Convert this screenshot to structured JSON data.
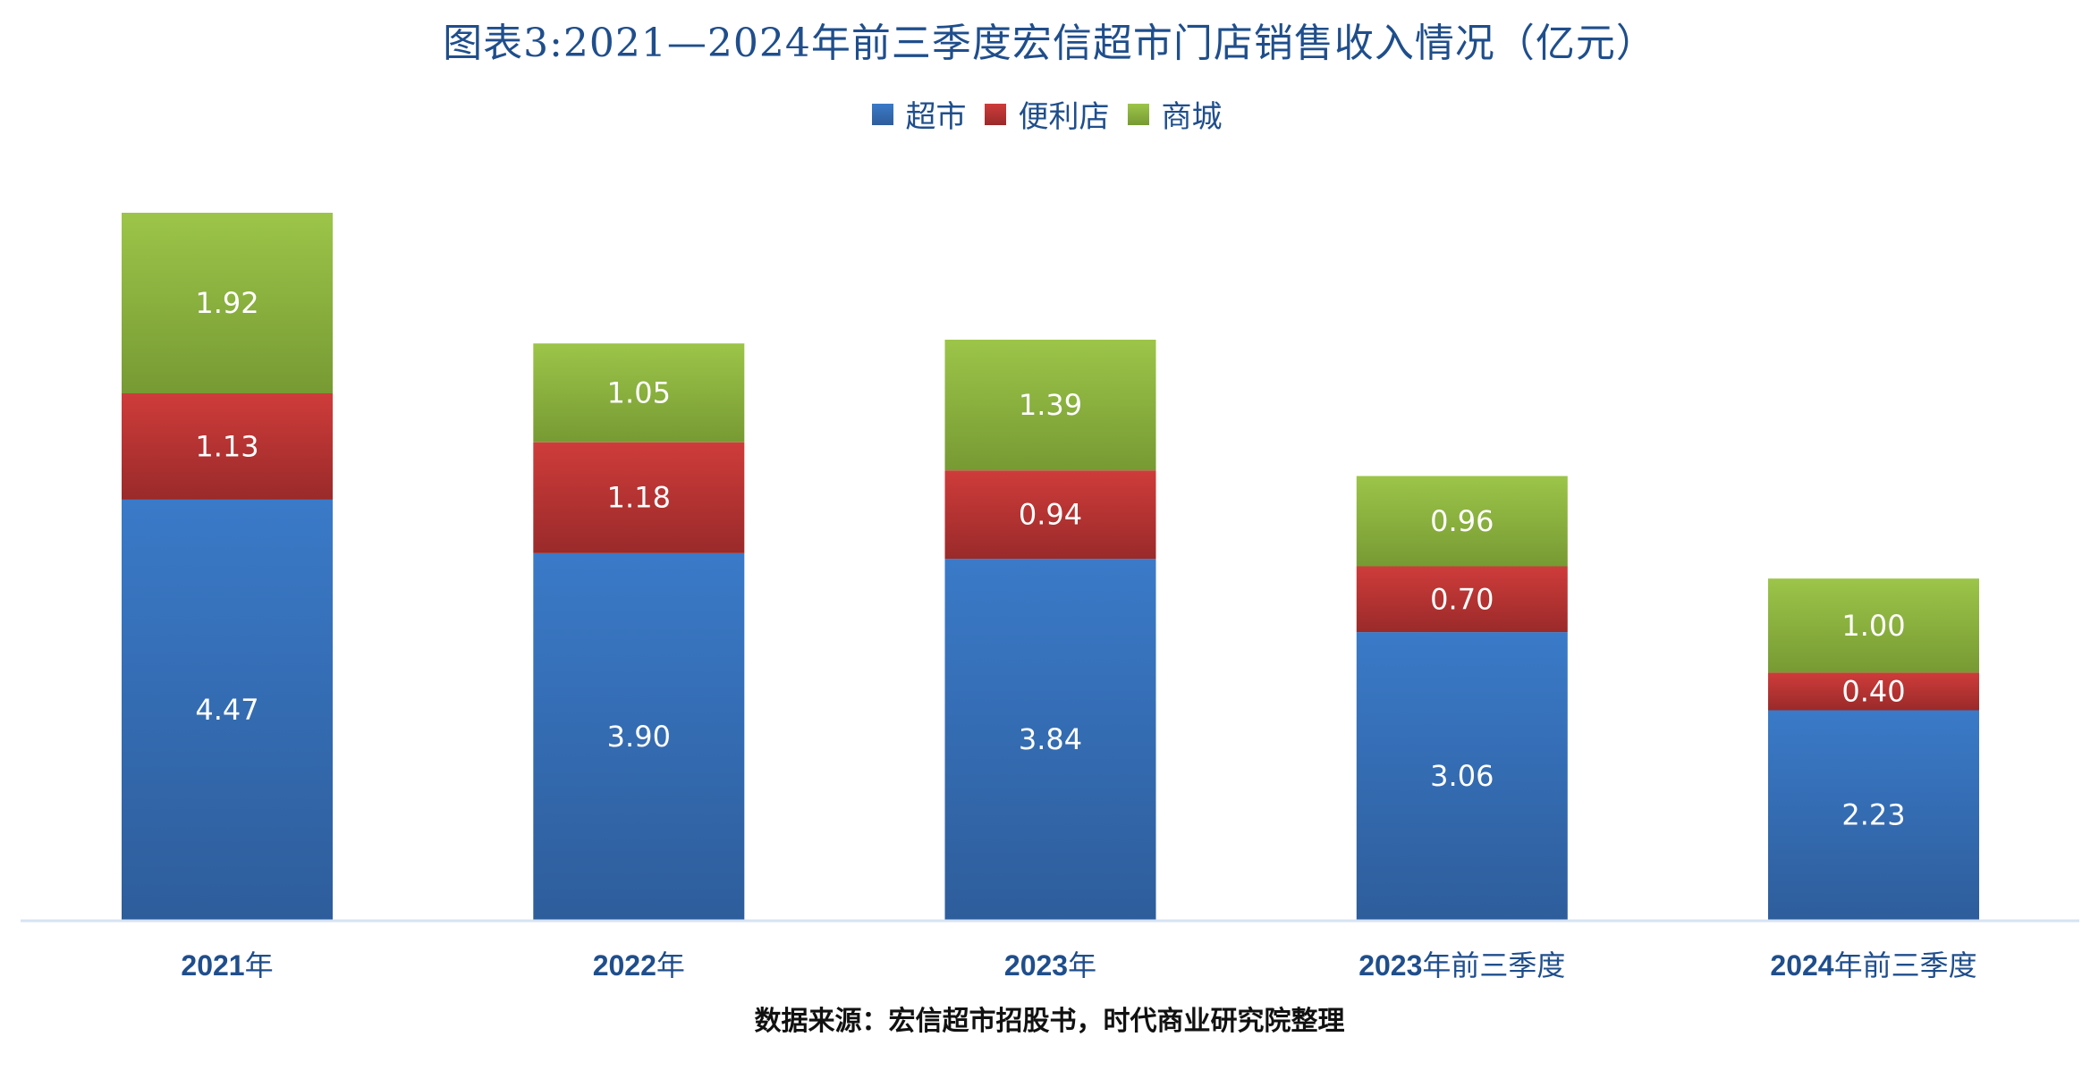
{
  "chart_data": {
    "type": "bar",
    "stacked": true,
    "title": "图表3:2021—2024年前三季度宏信超市门店销售收入情况（亿元）",
    "categories": [
      "2021年",
      "2022年",
      "2023年",
      "2023年前三季度",
      "2024年前三季度"
    ],
    "series": [
      {
        "name": "超市",
        "values": [
          4.47,
          3.9,
          3.84,
          3.06,
          2.23
        ],
        "color": "#3a7ac8",
        "color_dark": "#2e5d9b"
      },
      {
        "name": "便利店",
        "values": [
          1.13,
          1.18,
          0.94,
          0.7,
          0.4
        ],
        "color": "#ce3c3a",
        "color_dark": "#9a2a2a"
      },
      {
        "name": "商城",
        "values": [
          1.92,
          1.05,
          1.39,
          0.96,
          1.0
        ],
        "color": "#9cc549",
        "color_dark": "#779a33"
      }
    ],
    "value_labels": [
      [
        "4.47",
        "3.90",
        "3.84",
        "3.06",
        "2.23"
      ],
      [
        "1.13",
        "1.18",
        "0.94",
        "0.70",
        "0.40"
      ],
      [
        "1.92",
        "1.05",
        "1.39",
        "0.96",
        "1.00"
      ]
    ],
    "xlabel": "",
    "ylabel": "",
    "ylim": [
      0,
      7.52
    ],
    "grid": false,
    "legend_position": "top-center",
    "unit": "亿元",
    "axis_color": "#d6e3f3",
    "source": "数据来源：宏信超市招股书，时代商业研究院整理"
  }
}
